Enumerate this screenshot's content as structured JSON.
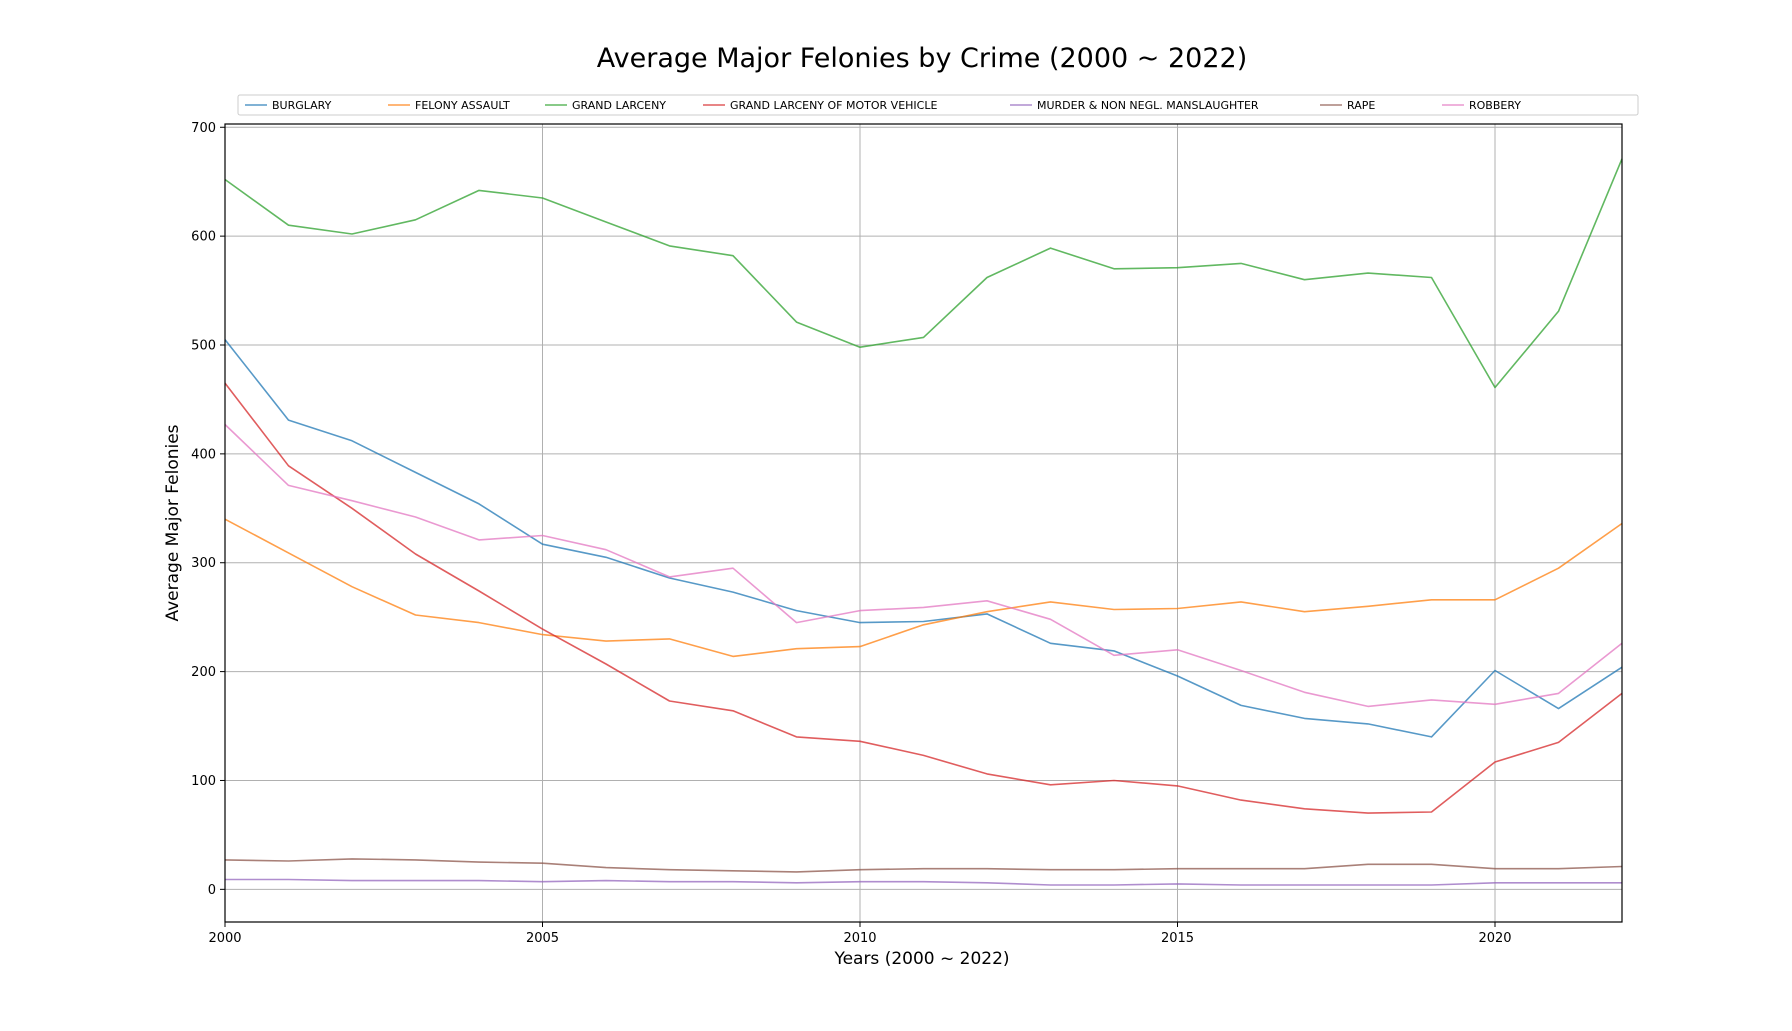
{
  "chart_data": {
    "type": "line",
    "title": "Average Major Felonies by Crime (2000 ~ 2022)",
    "xlabel": "Years (2000 ~ 2022)",
    "ylabel": "Average Major Felonies",
    "xlim": [
      2000,
      2022
    ],
    "ylim": [
      -30,
      703
    ],
    "xticks": [
      2000,
      2005,
      2010,
      2015,
      2020
    ],
    "yticks": [
      0,
      100,
      200,
      300,
      400,
      500,
      600,
      700
    ],
    "grid": true,
    "legend_position": "top",
    "x": [
      2000,
      2001,
      2002,
      2003,
      2004,
      2005,
      2006,
      2007,
      2008,
      2009,
      2010,
      2011,
      2012,
      2013,
      2014,
      2015,
      2016,
      2017,
      2018,
      2019,
      2020,
      2021,
      2022
    ],
    "series": [
      {
        "name": "BURGLARY",
        "color": "#1f77b4",
        "values": [
          505,
          431,
          412,
          383,
          354,
          317,
          305,
          286,
          273,
          256,
          245,
          246,
          253,
          226,
          219,
          196,
          169,
          157,
          152,
          140,
          201,
          166,
          204
        ]
      },
      {
        "name": "FELONY ASSAULT",
        "color": "#ff7f0e",
        "values": [
          340,
          309,
          278,
          252,
          245,
          234,
          228,
          230,
          214,
          221,
          223,
          243,
          255,
          264,
          257,
          258,
          264,
          255,
          260,
          266,
          266,
          295,
          336
        ]
      },
      {
        "name": "GRAND LARCENY",
        "color": "#2ca02c",
        "values": [
          652,
          610,
          602,
          615,
          642,
          635,
          613,
          591,
          582,
          521,
          498,
          507,
          562,
          589,
          570,
          571,
          575,
          560,
          566,
          562,
          461,
          531,
          671
        ]
      },
      {
        "name": "GRAND LARCENY OF MOTOR VEHICLE",
        "color": "#d62728",
        "values": [
          465,
          389,
          350,
          308,
          274,
          239,
          207,
          173,
          164,
          140,
          136,
          123,
          106,
          96,
          100,
          95,
          82,
          74,
          70,
          71,
          117,
          135,
          180
        ]
      },
      {
        "name": "MURDER & NON NEGL. MANSLAUGHTER",
        "color": "#9467bd",
        "values": [
          9,
          9,
          8,
          8,
          8,
          7,
          8,
          7,
          7,
          6,
          7,
          7,
          6,
          4,
          4,
          5,
          4,
          4,
          4,
          4,
          6,
          6,
          6
        ]
      },
      {
        "name": "RAPE",
        "color": "#8c564b",
        "values": [
          27,
          26,
          28,
          27,
          25,
          24,
          20,
          18,
          17,
          16,
          18,
          19,
          19,
          18,
          18,
          19,
          19,
          19,
          23,
          23,
          19,
          19,
          21
        ]
      },
      {
        "name": "ROBBERY",
        "color": "#e377c2",
        "values": [
          427,
          371,
          357,
          342,
          321,
          325,
          312,
          287,
          295,
          245,
          256,
          259,
          265,
          248,
          215,
          220,
          201,
          181,
          168,
          174,
          170,
          180,
          226
        ]
      }
    ]
  }
}
